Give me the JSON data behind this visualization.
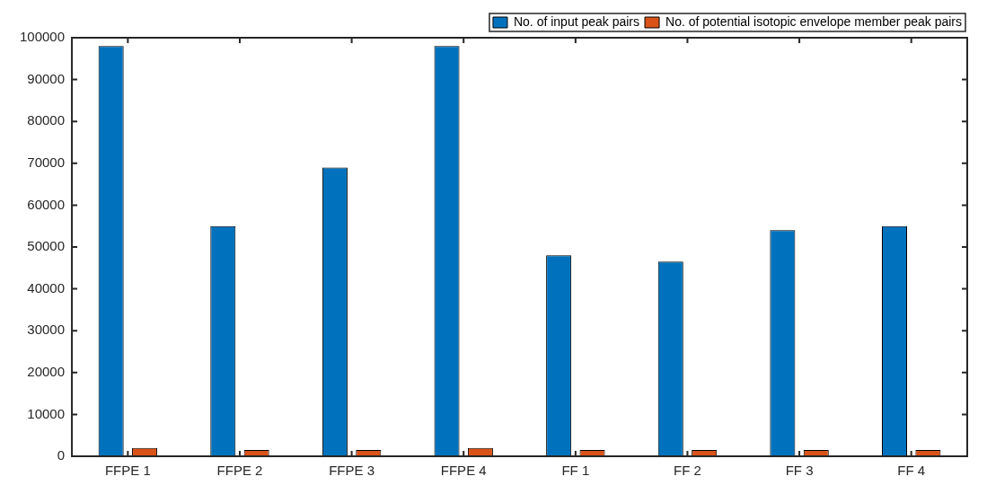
{
  "chart_data": {
    "type": "bar",
    "categories": [
      "FFPE 1",
      "FFPE 2",
      "FFPE 3",
      "FFPE 4",
      "FF 1",
      "FF 2",
      "FF 3",
      "FF 4"
    ],
    "series": [
      {
        "name": "No. of input peak pairs",
        "color": "#0072bd",
        "values": [
          98000,
          55000,
          69000,
          98000,
          48000,
          46500,
          54000,
          55000
        ]
      },
      {
        "name": "No. of potential isotopic envelope member peak pairs",
        "color": "#d95319",
        "values": [
          2000,
          1500,
          1500,
          2000,
          1500,
          1500,
          1500,
          1500
        ]
      }
    ],
    "ylim": [
      0,
      100000
    ],
    "yticks": [
      0,
      10000,
      20000,
      30000,
      40000,
      50000,
      60000,
      70000,
      80000,
      90000,
      100000
    ],
    "grid": false,
    "legend": "top right"
  }
}
